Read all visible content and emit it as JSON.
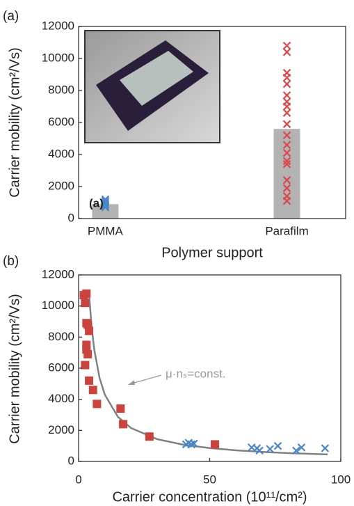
{
  "chart_data": [
    {
      "type": "bar",
      "panel_label": "(a)",
      "inset_label": "(a)",
      "ylabel": "Carrier mobility (cm²/Vs)",
      "xlabel": "Polymer support",
      "categories": [
        "PMMA",
        "Parafilm"
      ],
      "values": [
        900,
        5600
      ],
      "color": "#b3b3b3",
      "points": [
        {
          "color": "#4a86c5",
          "values": [
            700,
            800,
            900,
            1000,
            1100,
            1200
          ]
        },
        {
          "color": "#d9484c",
          "values": [
            10800,
            10400,
            9100,
            8800,
            8400,
            7700,
            7300,
            7000,
            6600,
            5900,
            5200,
            4600,
            4100,
            3600,
            3400,
            2400,
            1900,
            1400,
            1100
          ]
        }
      ],
      "ylim": [
        0,
        12000
      ],
      "yticks": [
        0,
        2000,
        4000,
        6000,
        8000,
        10000,
        12000
      ]
    },
    {
      "type": "scatter",
      "panel_label": "(b)",
      "ylabel": "Carrier mobility (cm²/Vs)",
      "xlabel": "Carrier concentration (10¹¹/cm²)",
      "annotation": "μ·nₛ=const.",
      "series": [
        {
          "color": "#c9433f",
          "marker": "square",
          "x": [
            2,
            3,
            2.5,
            3,
            3.5,
            4,
            3,
            3,
            3.5,
            2.5,
            4,
            5.5,
            7,
            16,
            17,
            27,
            52
          ],
          "values": [
            10700,
            10800,
            10200,
            8900,
            8800,
            8400,
            7500,
            7200,
            6900,
            6200,
            5200,
            4600,
            3700,
            3400,
            2400,
            1600,
            1100
          ]
        },
        {
          "color": "#4a86c5",
          "marker": "cross",
          "x": [
            41,
            42,
            43,
            44,
            66,
            68,
            69,
            73,
            76,
            83,
            85,
            94
          ],
          "values": [
            1100,
            1200,
            1100,
            1150,
            900,
            850,
            700,
            800,
            1000,
            700,
            900,
            850
          ]
        },
        {
          "color": "#808080",
          "marker": "line",
          "x": [
            4,
            5,
            6,
            8,
            10,
            15,
            20,
            30,
            40,
            50,
            60,
            70,
            80,
            95
          ],
          "values": [
            10750,
            8600,
            7167,
            5375,
            4300,
            2867,
            2150,
            1433,
            1075,
            860,
            717,
            614,
            538,
            453
          ]
        }
      ],
      "xlim": [
        0,
        100
      ],
      "xticks": [
        0,
        50,
        100
      ],
      "ylim": [
        0,
        12000
      ],
      "yticks": [
        0,
        2000,
        4000,
        6000,
        8000,
        10000,
        12000
      ]
    }
  ]
}
